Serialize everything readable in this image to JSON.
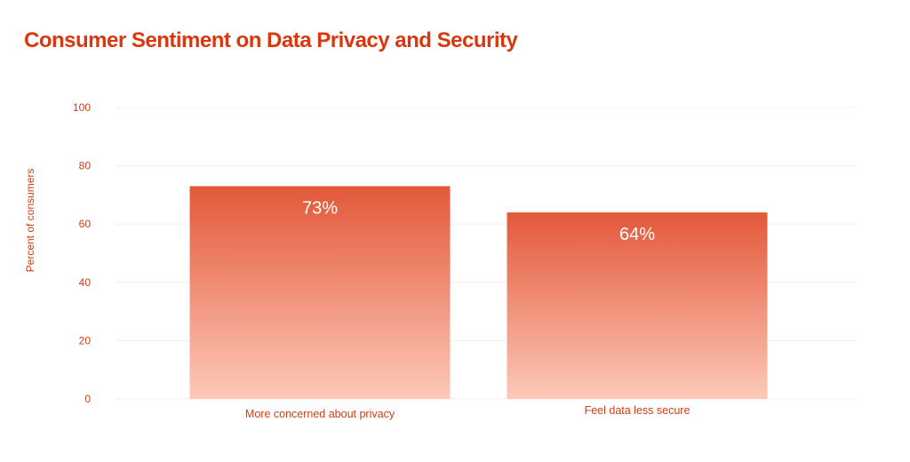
{
  "chart_data": {
    "type": "bar",
    "title": "Consumer Sentiment on Data Privacy and Security",
    "xlabel": "",
    "ylabel": "Percent of consumers",
    "categories": [
      "More concerned about privacy",
      "Feel data less secure"
    ],
    "values": [
      73,
      64
    ],
    "data_labels": [
      "73%",
      "64%"
    ],
    "ylim": [
      0,
      100
    ],
    "yticks": [
      0,
      20,
      40,
      60,
      80,
      100
    ],
    "grid": true,
    "legend": "none",
    "colors": {
      "title": "#d9380f",
      "bar_top": "#e3583a",
      "bar_bottom": "#fdc9b8",
      "text": "#c9401a",
      "grid": "#f7ece8"
    }
  }
}
